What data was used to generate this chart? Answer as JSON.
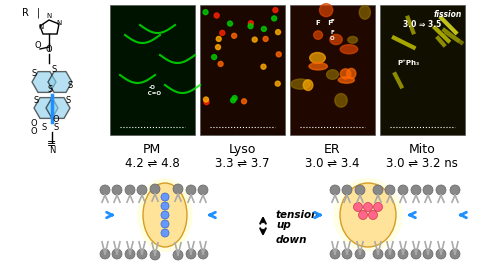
{
  "title": "",
  "background_color": "#ffffff",
  "labels": {
    "PM": "PM",
    "Lyso": "Lyso",
    "ER": "ER",
    "Mito": "Mito"
  },
  "lifetimes": {
    "PM": [
      "4.2",
      "4.8"
    ],
    "Lyso": [
      "3.3",
      "3.7"
    ],
    "ER": [
      "3.0",
      "3.4"
    ],
    "Mito": [
      "3.0",
      "3.2 ns"
    ]
  },
  "fission_label": "fission",
  "tension_up": "tension\nup",
  "tension_down": "down",
  "microscopy_colors": {
    "PM_bg": "#001800",
    "PM_green": "#00ff00",
    "Lyso_bg": "#1a0a00",
    "Lyso_orange": "#ff8800",
    "Lyso_green": "#88ff00",
    "ER_bg": "#1a0800",
    "ER_orange": "#ff6600",
    "Mito_bg": "#0a0800",
    "Mito_yellow": "#dddd00"
  },
  "molecule_color": "#87CEEB",
  "arrow_color": "#1e90ff"
}
